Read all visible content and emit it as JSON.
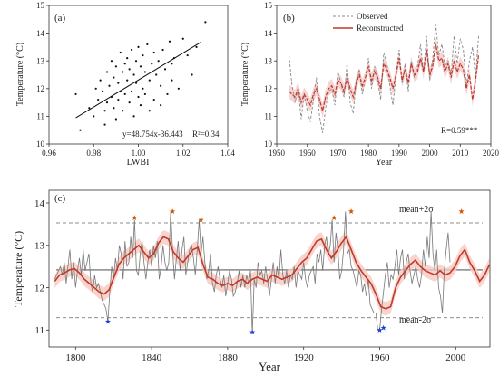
{
  "chart_data": [
    {
      "panel": "(a)",
      "type": "scatter",
      "xlabel": "LWBI",
      "ylabel": "Temperature (°C)",
      "xlim": [
        0.96,
        1.04
      ],
      "ylim": [
        10,
        15
      ],
      "xticks": [
        "0.96",
        "0.98",
        "1.00",
        "1.02",
        "1.04"
      ],
      "yticks": [
        "10",
        "11",
        "12",
        "13",
        "14",
        "15"
      ],
      "equation": "y=48.754x-36.443",
      "r2": "R²=0.34",
      "fit": {
        "slope": 48.754,
        "intercept": -36.443,
        "x": [
          0.972,
          1.028
        ]
      },
      "points": [
        [
          0.972,
          11.8
        ],
        [
          0.974,
          10.5
        ],
        [
          0.978,
          11.3
        ],
        [
          0.98,
          11.0
        ],
        [
          0.981,
          12.0
        ],
        [
          0.982,
          11.6
        ],
        [
          0.983,
          12.3
        ],
        [
          0.984,
          11.9
        ],
        [
          0.985,
          10.7
        ],
        [
          0.985,
          11.2
        ],
        [
          0.986,
          12.6
        ],
        [
          0.986,
          11.5
        ],
        [
          0.987,
          12.1
        ],
        [
          0.988,
          11.7
        ],
        [
          0.988,
          13.0
        ],
        [
          0.989,
          11.3
        ],
        [
          0.989,
          12.4
        ],
        [
          0.99,
          12.8
        ],
        [
          0.99,
          10.9
        ],
        [
          0.991,
          11.6
        ],
        [
          0.991,
          12.2
        ],
        [
          0.992,
          13.3
        ],
        [
          0.992,
          11.9
        ],
        [
          0.993,
          12.6
        ],
        [
          0.993,
          11.2
        ],
        [
          0.994,
          12.9
        ],
        [
          0.994,
          11.8
        ],
        [
          0.995,
          13.1
        ],
        [
          0.995,
          12.3
        ],
        [
          0.996,
          11.5
        ],
        [
          0.996,
          12.7
        ],
        [
          0.997,
          13.4
        ],
        [
          0.997,
          11.9
        ],
        [
          0.998,
          12.5
        ],
        [
          0.998,
          11.0
        ],
        [
          0.999,
          13.0
        ],
        [
          0.999,
          12.2
        ],
        [
          1.0,
          11.7
        ],
        [
          1.0,
          13.5
        ],
        [
          1.001,
          12.8
        ],
        [
          1.001,
          11.4
        ],
        [
          1.002,
          12.0
        ],
        [
          1.002,
          13.2
        ],
        [
          1.003,
          12.6
        ],
        [
          1.003,
          11.8
        ],
        [
          1.004,
          13.6
        ],
        [
          1.005,
          12.3
        ],
        [
          1.005,
          11.2
        ],
        [
          1.006,
          12.9
        ],
        [
          1.007,
          13.3
        ],
        [
          1.007,
          11.6
        ],
        [
          1.008,
          12.5
        ],
        [
          1.009,
          13.0
        ],
        [
          1.01,
          12.1
        ],
        [
          1.01,
          11.4
        ],
        [
          1.011,
          13.4
        ],
        [
          1.012,
          12.7
        ],
        [
          1.013,
          11.8
        ],
        [
          1.014,
          13.7
        ],
        [
          1.015,
          12.9
        ],
        [
          1.015,
          12.3
        ],
        [
          1.016,
          13.1
        ],
        [
          1.018,
          12.0
        ],
        [
          1.02,
          13.8
        ],
        [
          1.022,
          13.2
        ],
        [
          1.024,
          12.5
        ],
        [
          1.026,
          13.5
        ],
        [
          1.03,
          14.4
        ]
      ]
    },
    {
      "panel": "(b)",
      "type": "line",
      "xlabel": "Year",
      "ylabel": "Temperature (°C)",
      "xlim": [
        1950,
        2020
      ],
      "ylim": [
        10,
        15
      ],
      "xticks": [
        "1950",
        "1960",
        "1970",
        "1980",
        "1990",
        "2000",
        "2010",
        "2020"
      ],
      "yticks": [
        "10",
        "11",
        "12",
        "13",
        "14",
        "15"
      ],
      "annotation": "R=0.59***",
      "legend": [
        "Observed",
        "Reconstructed"
      ],
      "x_start": 1954,
      "series": [
        {
          "name": "Observed",
          "values": [
            13.2,
            12.1,
            11.5,
            12.0,
            10.9,
            11.8,
            11.2,
            10.8,
            11.6,
            12.4,
            11.0,
            10.4,
            11.3,
            11.9,
            12.0,
            11.4,
            12.6,
            12.2,
            11.7,
            12.9,
            11.5,
            11.1,
            12.3,
            12.7,
            11.8,
            12.4,
            13.1,
            12.0,
            12.8,
            12.3,
            11.6,
            13.3,
            12.9,
            12.1,
            11.4,
            12.5,
            13.4,
            12.2,
            12.9,
            11.9,
            13.0,
            12.4,
            12.8,
            13.6,
            12.6,
            13.9,
            12.3,
            13.1,
            14.3,
            13.2,
            13.6,
            12.8,
            13.0,
            12.5,
            13.9,
            12.9,
            13.8,
            13.4,
            12.1,
            13.0,
            13.5,
            12.4,
            13.9
          ]
        },
        {
          "name": "Reconstructed",
          "values": [
            11.9,
            11.8,
            11.7,
            12.0,
            11.5,
            11.8,
            11.6,
            11.4,
            11.8,
            12.0,
            11.6,
            11.2,
            11.7,
            12.0,
            12.1,
            11.8,
            12.3,
            12.2,
            11.9,
            12.4,
            12.0,
            11.7,
            12.2,
            12.5,
            12.1,
            12.4,
            12.8,
            12.3,
            12.6,
            12.4,
            12.0,
            12.9,
            12.7,
            12.4,
            12.0,
            12.5,
            13.1,
            12.3,
            12.7,
            12.2,
            12.9,
            12.5,
            12.6,
            13.1,
            12.6,
            13.4,
            12.5,
            12.8,
            13.6,
            13.0,
            13.1,
            12.6,
            12.9,
            12.4,
            13.0,
            12.6,
            12.9,
            12.7,
            12.0,
            12.5,
            11.6,
            12.3,
            13.2
          ]
        }
      ]
    },
    {
      "panel": "(c)",
      "type": "line",
      "xlabel": "Year",
      "ylabel": "Temperature (°C)",
      "xlim": [
        1786,
        2018
      ],
      "ylim": [
        10.6,
        14.3
      ],
      "xticks": [
        "1800",
        "1840",
        "1880",
        "1920",
        "1960",
        "2000"
      ],
      "yticks": [
        "11",
        "12",
        "13",
        "14"
      ],
      "mean": 12.42,
      "upper": {
        "label": "mean+2σ",
        "value": 13.53
      },
      "lower": {
        "label": "mean-2σ",
        "value": 11.29
      },
      "x_start": 1789,
      "annual": [
        12.2,
        12.3,
        12.4,
        12.5,
        12.3,
        12.6,
        12.1,
        12.5,
        12.9,
        12.2,
        12.6,
        12.0,
        12.4,
        12.7,
        12.3,
        12.9,
        12.4,
        12.6,
        12.8,
        12.1,
        11.9,
        12.3,
        12.0,
        12.1,
        11.9,
        11.7,
        11.6,
        11.5,
        11.2,
        11.9,
        12.5,
        12.2,
        12.7,
        12.4,
        13.0,
        12.8,
        12.2,
        13.1,
        12.5,
        12.6,
        13.2,
        12.7,
        13.6,
        12.4,
        12.3,
        12.8,
        13.1,
        12.6,
        12.2,
        12.6,
        12.9,
        12.5,
        13.0,
        12.7,
        13.1,
        12.2,
        12.5,
        13.0,
        12.6,
        12.4,
        12.6,
        13.8,
        12.9,
        12.2,
        12.7,
        13.1,
        12.4,
        12.9,
        13.2,
        12.3,
        12.6,
        12.9,
        13.0,
        12.7,
        12.3,
        12.9,
        13.6,
        12.8,
        13.2,
        12.6,
        12.2,
        12.4,
        12.8,
        12.1,
        11.9,
        12.3,
        12.5,
        12.2,
        12.0,
        12.3,
        11.8,
        12.1,
        12.4,
        12.2,
        11.8,
        11.9,
        12.1,
        12.4,
        12.0,
        12.3,
        12.0,
        12.3,
        12.1,
        12.4,
        10.9,
        12.2,
        12.0,
        12.6,
        12.3,
        12.4,
        12.1,
        12.5,
        12.2,
        11.8,
        12.2,
        12.6,
        12.1,
        12.5,
        12.2,
        12.9,
        12.3,
        12.1,
        12.4,
        12.0,
        12.3,
        12.2,
        12.5,
        12.0,
        12.4,
        12.3,
        12.2,
        12.6,
        12.2,
        12.0,
        12.3,
        12.4,
        12.5,
        12.1,
        12.8,
        12.6,
        12.9,
        12.4,
        13.0,
        13.2,
        12.8,
        13.0,
        13.6,
        12.6,
        13.3,
        12.9,
        12.2,
        12.4,
        12.9,
        13.8,
        12.8,
        12.9,
        12.5,
        12.4,
        12.2,
        12.0,
        12.4,
        12.3,
        11.9,
        12.1,
        11.8,
        12.2,
        11.6,
        11.5,
        11.4,
        11.4,
        11.0,
        11.0,
        11.5,
        11.9,
        12.3,
        12.6,
        12.0,
        12.3,
        12.2,
        12.5,
        12.9,
        12.3,
        12.7,
        12.9,
        12.2,
        12.6,
        12.8,
        12.4,
        12.1,
        12.3,
        12.5,
        12.2,
        12.0,
        12.3,
        12.9,
        12.5,
        13.2,
        12.7,
        13.8,
        12.8,
        12.4,
        12.9,
        12.0,
        11.8,
        11.4,
        12.4,
        12.9,
        13.3,
        12.6
      ],
      "smooth_y": [
        12.15,
        12.3,
        12.35,
        12.42,
        12.45,
        12.35,
        12.2,
        12.1,
        12.0,
        11.9,
        11.85,
        11.95,
        12.25,
        12.55,
        12.7,
        12.8,
        12.9,
        13.0,
        12.85,
        12.7,
        12.8,
        13.05,
        13.2,
        13.15,
        12.85,
        12.7,
        12.6,
        12.75,
        12.9,
        12.95,
        12.55,
        12.25,
        12.2,
        12.1,
        12.05,
        12.1,
        12.05,
        12.15,
        12.2,
        12.1,
        12.2,
        12.25,
        12.2,
        12.15,
        12.3,
        12.25,
        12.2,
        12.25,
        12.3,
        12.45,
        12.6,
        12.7,
        12.9,
        13.1,
        13.15,
        12.9,
        12.7,
        12.85,
        13.05,
        13.2,
        12.9,
        12.6,
        12.4,
        12.25,
        12.1,
        11.85,
        11.55,
        11.5,
        11.55,
        12.0,
        12.25,
        12.4,
        12.55,
        12.65,
        12.5,
        12.4,
        12.35,
        12.3,
        12.4,
        12.3,
        12.35,
        12.5,
        12.75,
        12.9,
        12.6,
        12.4,
        12.15,
        12.3,
        12.55
      ],
      "smooth_x_start": 1789,
      "smooth_x_step": 2.6,
      "extremes_high": [
        [
          1831,
          13.65
        ],
        [
          1851,
          13.8
        ],
        [
          1866,
          13.6
        ],
        [
          1936,
          13.65
        ],
        [
          1945,
          13.8
        ],
        [
          2003,
          13.8
        ]
      ],
      "extremes_low": [
        [
          1817,
          11.2
        ],
        [
          1893,
          10.95
        ],
        [
          1960,
          11.0
        ],
        [
          1962,
          11.05
        ]
      ]
    }
  ]
}
